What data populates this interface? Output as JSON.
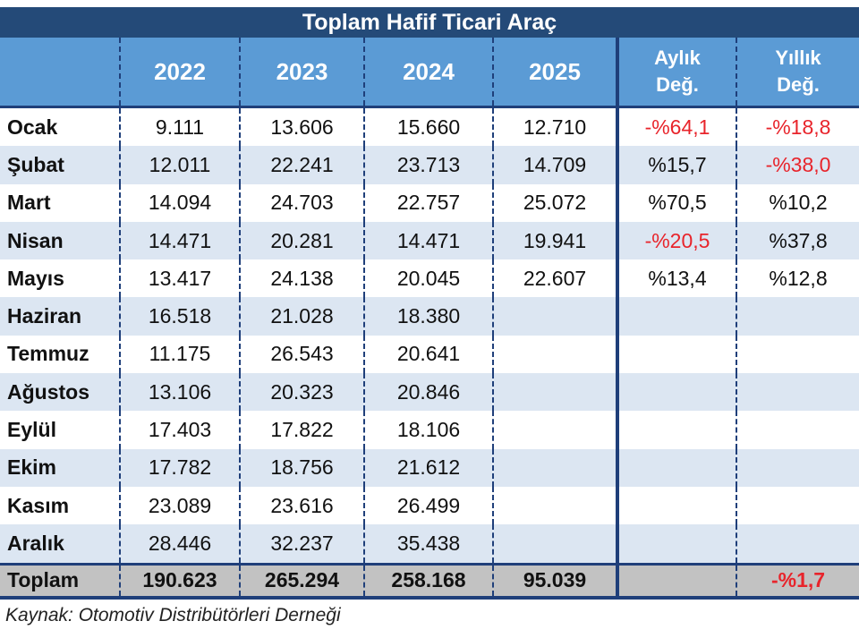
{
  "title": "Toplam Hafif Ticari Araç",
  "headers": {
    "label": "",
    "y2022": "2022",
    "y2023": "2023",
    "y2024": "2024",
    "y2025": "2025",
    "monthly_l1": "Aylık",
    "monthly_l2": "Değ.",
    "yearly_l1": "Yıllık",
    "yearly_l2": "Değ."
  },
  "rows": [
    {
      "month": "Ocak",
      "y2022": "9.111",
      "y2023": "13.606",
      "y2024": "15.660",
      "y2025": "12.710",
      "monthly": "-%64,1",
      "yearly": "-%18,8"
    },
    {
      "month": "Şubat",
      "y2022": "12.011",
      "y2023": "22.241",
      "y2024": "23.713",
      "y2025": "14.709",
      "monthly": "%15,7",
      "yearly": "-%38,0"
    },
    {
      "month": "Mart",
      "y2022": "14.094",
      "y2023": "24.703",
      "y2024": "22.757",
      "y2025": "25.072",
      "monthly": "%70,5",
      "yearly": "%10,2"
    },
    {
      "month": "Nisan",
      "y2022": "14.471",
      "y2023": "20.281",
      "y2024": "14.471",
      "y2025": "19.941",
      "monthly": "-%20,5",
      "yearly": "%37,8"
    },
    {
      "month": "Mayıs",
      "y2022": "13.417",
      "y2023": "24.138",
      "y2024": "20.045",
      "y2025": "22.607",
      "monthly": "%13,4",
      "yearly": "%12,8"
    },
    {
      "month": "Haziran",
      "y2022": "16.518",
      "y2023": "21.028",
      "y2024": "18.380",
      "y2025": "",
      "monthly": "",
      "yearly": ""
    },
    {
      "month": "Temmuz",
      "y2022": "11.175",
      "y2023": "26.543",
      "y2024": "20.641",
      "y2025": "",
      "monthly": "",
      "yearly": ""
    },
    {
      "month": "Ağustos",
      "y2022": "13.106",
      "y2023": "20.323",
      "y2024": "20.846",
      "y2025": "",
      "monthly": "",
      "yearly": ""
    },
    {
      "month": "Eylül",
      "y2022": "17.403",
      "y2023": "17.822",
      "y2024": "18.106",
      "y2025": "",
      "monthly": "",
      "yearly": ""
    },
    {
      "month": "Ekim",
      "y2022": "17.782",
      "y2023": "18.756",
      "y2024": "21.612",
      "y2025": "",
      "monthly": "",
      "yearly": ""
    },
    {
      "month": "Kasım",
      "y2022": "23.089",
      "y2023": "23.616",
      "y2024": "26.499",
      "y2025": "",
      "monthly": "",
      "yearly": ""
    },
    {
      "month": "Aralık",
      "y2022": "28.446",
      "y2023": "32.237",
      "y2024": "35.438",
      "y2025": "",
      "monthly": "",
      "yearly": ""
    }
  ],
  "total": {
    "month": "Toplam",
    "y2022": "190.623",
    "y2023": "265.294",
    "y2024": "258.168",
    "y2025": "95.039",
    "monthly": "",
    "yearly": "-%1,7"
  },
  "source": "Kaynak: Otomotiv Distribütörleri Derneği",
  "colors": {
    "title_bg": "#244a78",
    "header_bg": "#5b9bd5",
    "alt_row": "#dce6f2",
    "total_bg": "#c2c2c2",
    "negative": "#e8242b"
  }
}
